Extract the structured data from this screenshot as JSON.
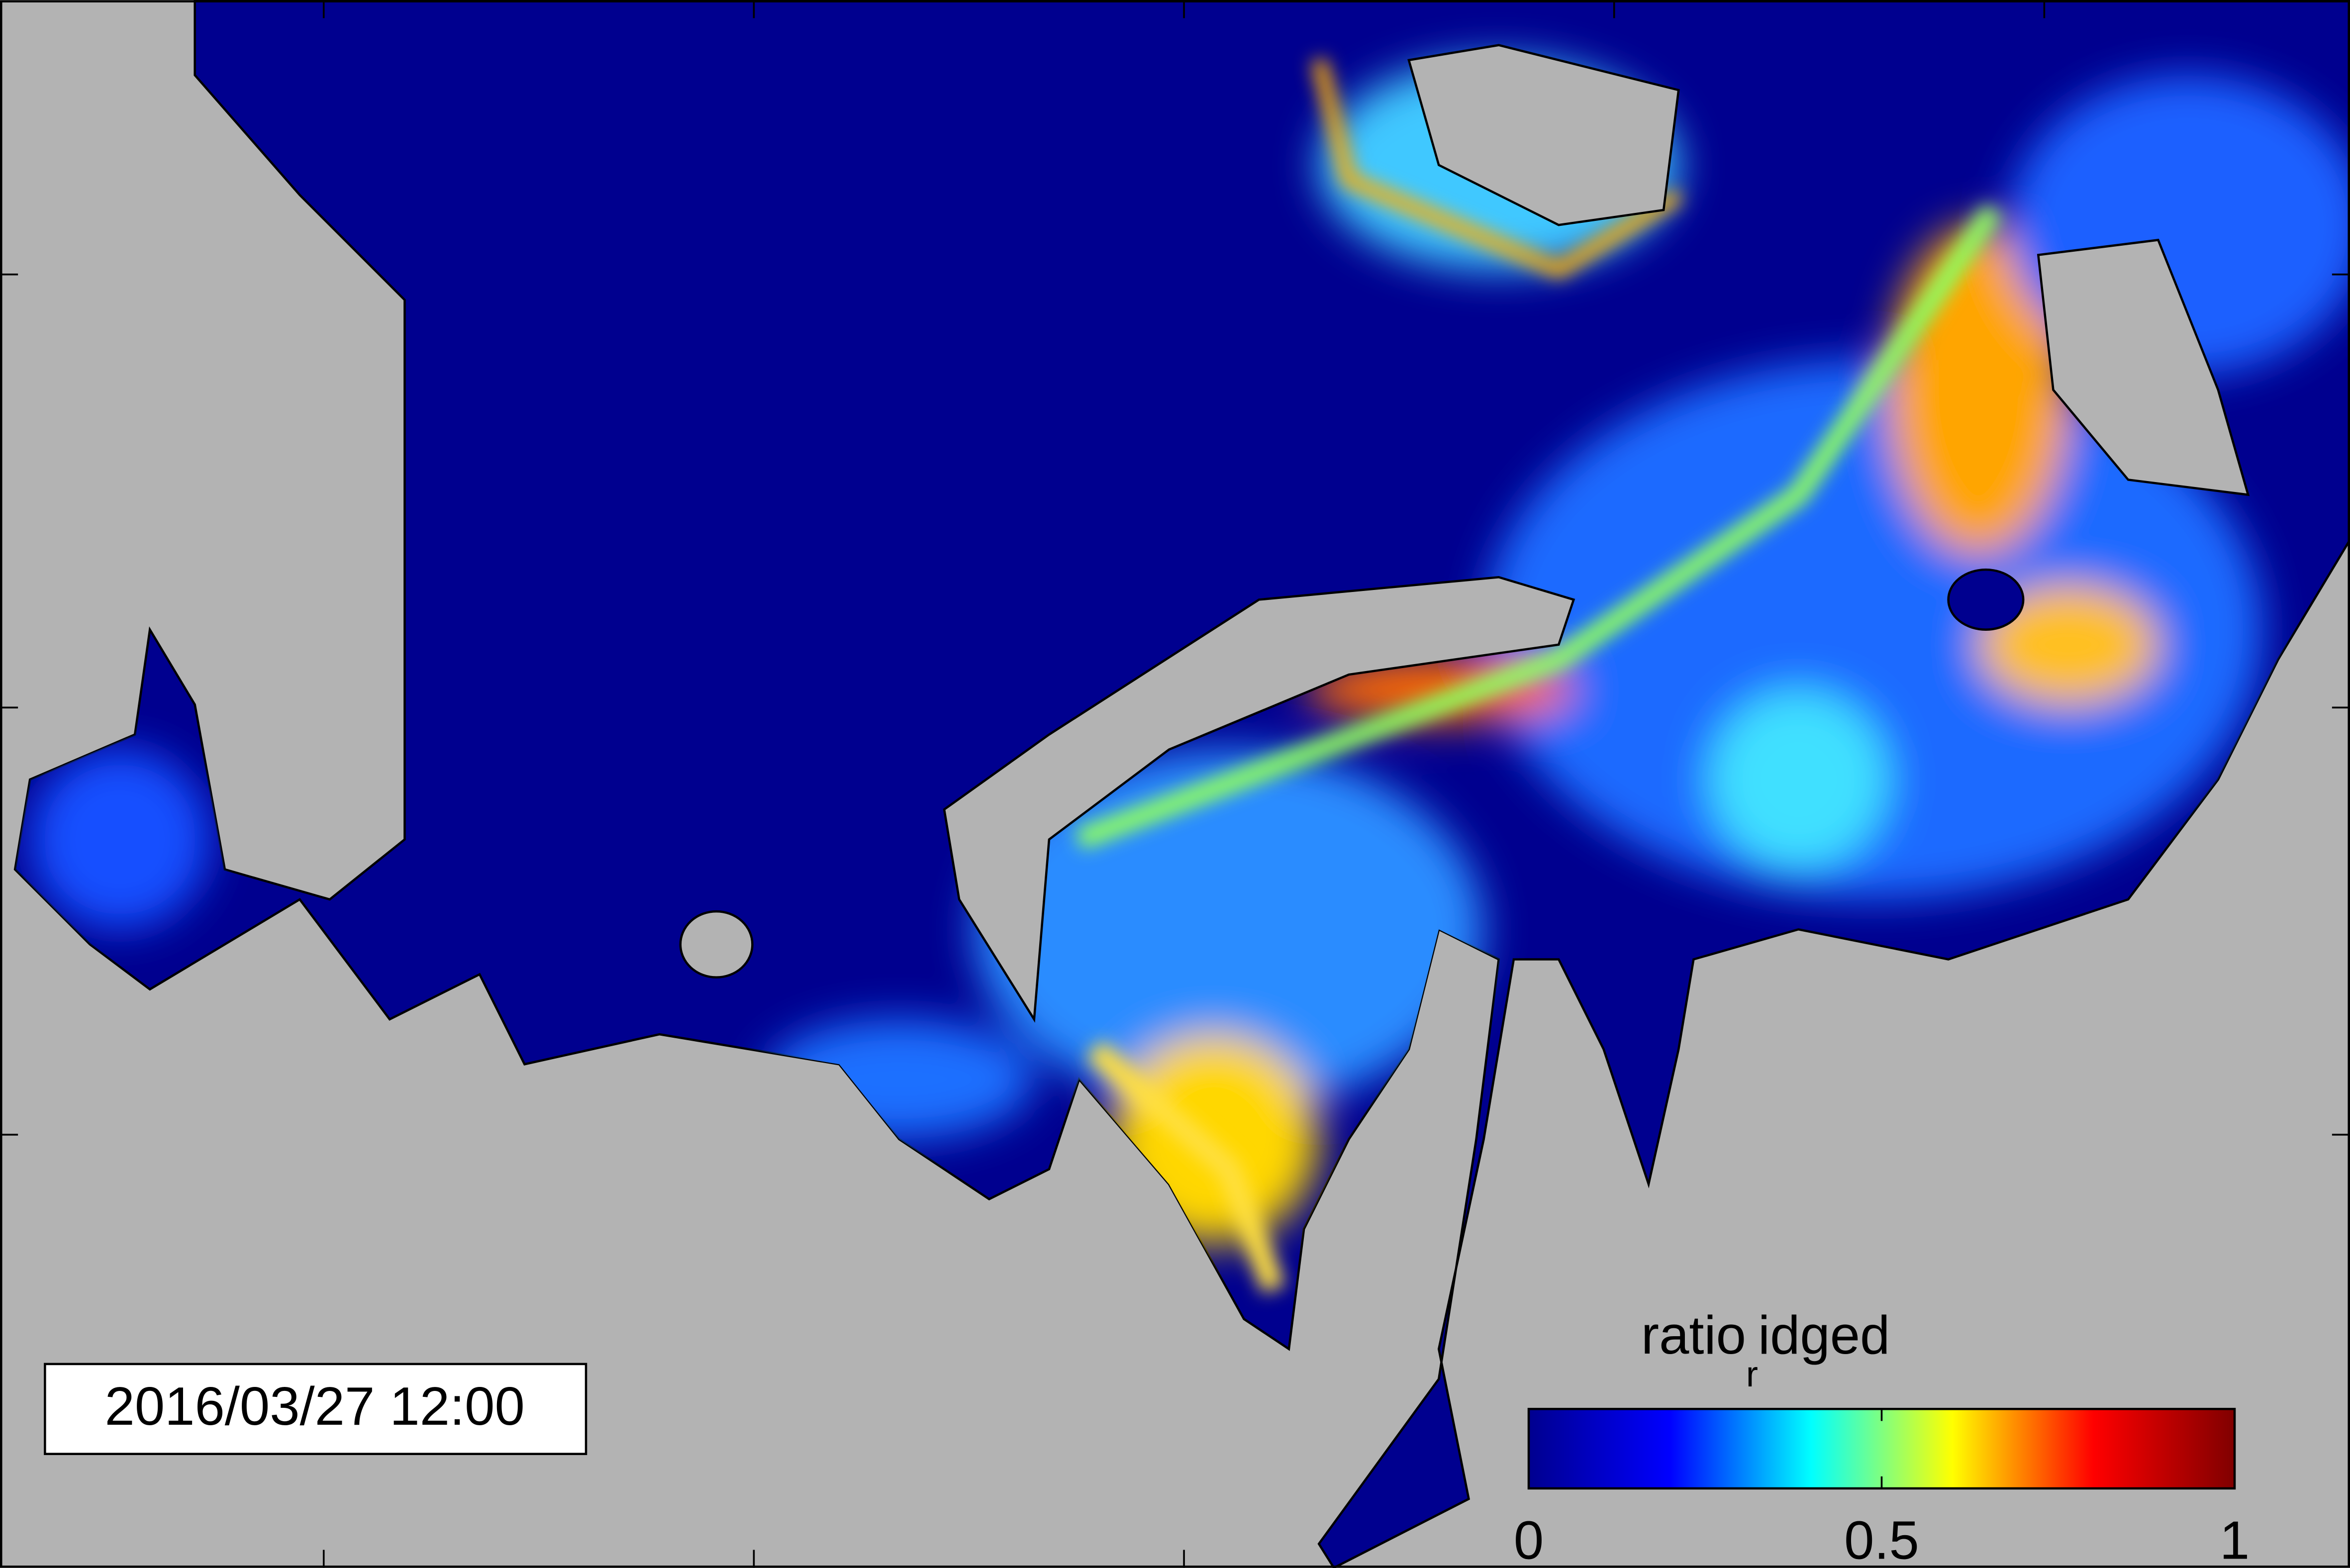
{
  "timestamp": "2016/03/27 12:00",
  "colorbar": {
    "label": {
      "main": "ratio",
      "subscript": "r",
      "rest": "idged"
    },
    "clim": [
      0,
      1
    ],
    "ticks": [
      0,
      0.5,
      1
    ],
    "colormap": [
      "#00008f",
      "#0000ff",
      "#00ffff",
      "#ffff00",
      "#ff0000",
      "#800000"
    ]
  }
}
